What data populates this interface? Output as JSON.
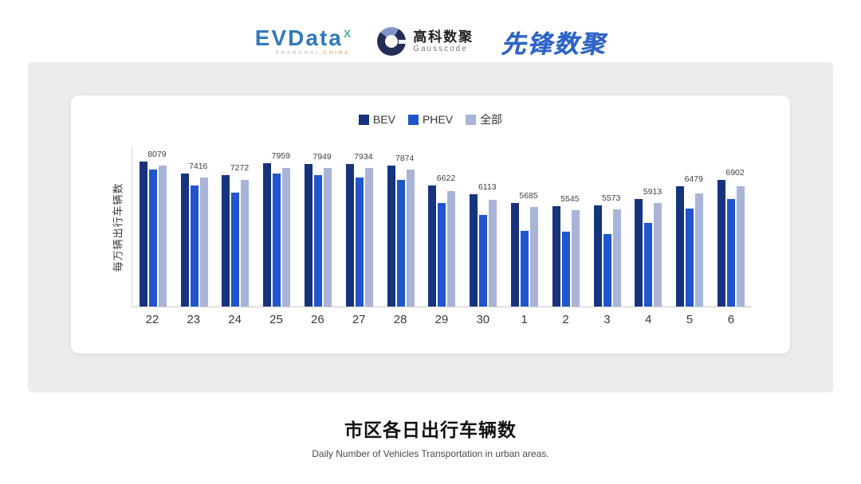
{
  "header": {
    "evdata": {
      "wordmark": "EVData",
      "superscript": "X",
      "tagline_left": "SHANGHAI",
      "tagline_right": "CHINA"
    },
    "gausscode": {
      "cn_name": "高科数聚",
      "en_name": "Gausscode"
    },
    "pioneer": {
      "wordmark": "先锋数聚"
    }
  },
  "chart_data": {
    "type": "bar",
    "title": "市区各日出行车辆数",
    "subtitle": "Daily Number of Vehicles Transportation in urban areas.",
    "ylabel": "每万辆出行车辆数",
    "xlabel": "",
    "legend_position": "top",
    "grid": false,
    "ylim": [
      0,
      8400
    ],
    "categories": [
      "22",
      "23",
      "24",
      "25",
      "26",
      "27",
      "28",
      "29",
      "30",
      "1",
      "2",
      "3",
      "4",
      "5",
      "6"
    ],
    "series": [
      {
        "name": "BEV",
        "color": "#16337E",
        "values": [
          8320,
          7610,
          7520,
          8230,
          8180,
          8170,
          8090,
          6920,
          6420,
          5930,
          5760,
          5810,
          6180,
          6890,
          7280
        ]
      },
      {
        "name": "PHEV",
        "color": "#2155CD",
        "values": [
          7850,
          6950,
          6550,
          7620,
          7520,
          7380,
          7260,
          5950,
          5250,
          4350,
          4280,
          4150,
          4800,
          5620,
          6150
        ]
      },
      {
        "name": "全部",
        "color": "#A9B4D8",
        "values": [
          8079,
          7416,
          7272,
          7959,
          7949,
          7934,
          7874,
          6622,
          6113,
          5685,
          5545,
          5573,
          5913,
          6479,
          6902
        ]
      }
    ],
    "bar_labels": [
      "8079",
      "7416",
      "7272",
      "7959",
      "7949",
      "7934",
      "7874",
      "6622",
      "6113",
      "5685",
      "5545",
      "5573",
      "5913",
      "6479",
      "6902"
    ]
  },
  "footer": {
    "title": "市区各日出行车辆数",
    "subtitle": "Daily Number of Vehicles Transportation in urban areas."
  }
}
